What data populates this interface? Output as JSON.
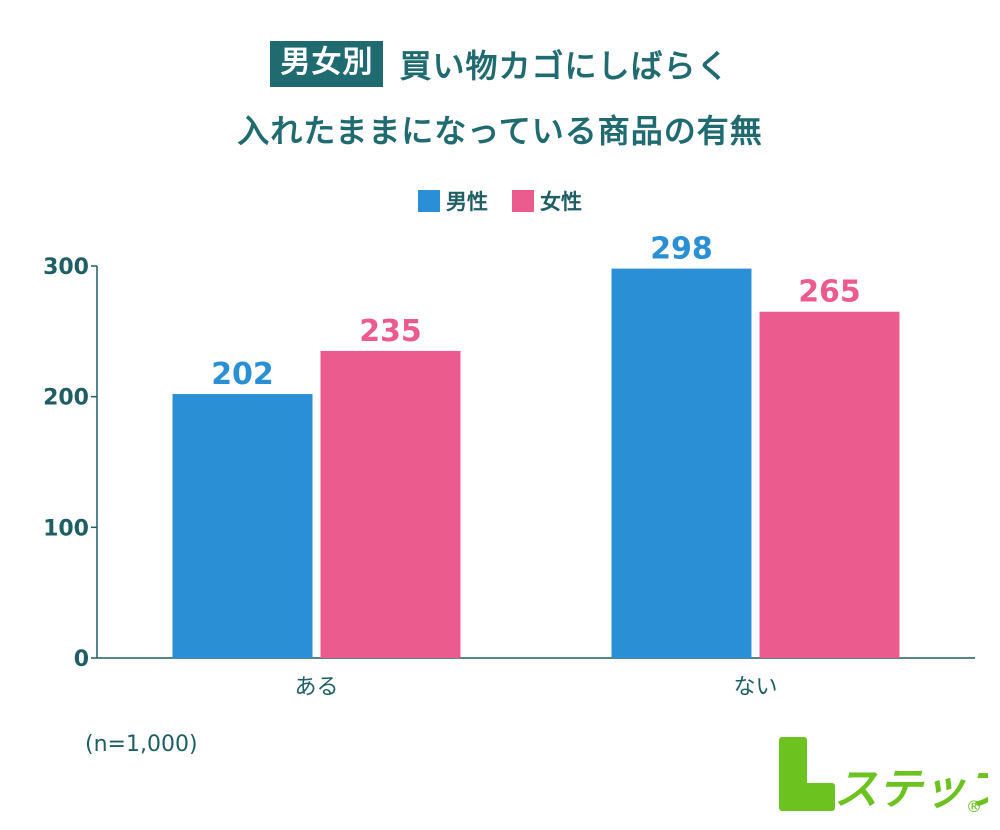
{
  "title": {
    "badge": "男女別",
    "line1": "買い物カゴにしばらく",
    "line2": "入れたままになっている商品の有無"
  },
  "legend": [
    {
      "label": "男性",
      "color": "#2b8fd6"
    },
    {
      "label": "女性",
      "color": "#ec5b8e"
    }
  ],
  "note": "(n=1,000)",
  "logo": {
    "text": "Lステップ",
    "mark": "®",
    "color": "#6cc21e"
  },
  "colors": {
    "axis": "#1f5f63",
    "male": "#2b8fd6",
    "female": "#ec5b8e"
  },
  "chart_data": {
    "type": "bar",
    "categories": [
      "ある",
      "ない"
    ],
    "series": [
      {
        "name": "男性",
        "values": [
          202,
          298
        ]
      },
      {
        "name": "女性",
        "values": [
          235,
          265
        ]
      }
    ],
    "ylim": [
      0,
      300
    ],
    "yticks": [
      0,
      100,
      200,
      300
    ],
    "title": "男女別 買い物カゴにしばらく入れたままになっている商品の有無",
    "xlabel": "",
    "ylabel": "",
    "grid": false,
    "legend": "top-center"
  }
}
